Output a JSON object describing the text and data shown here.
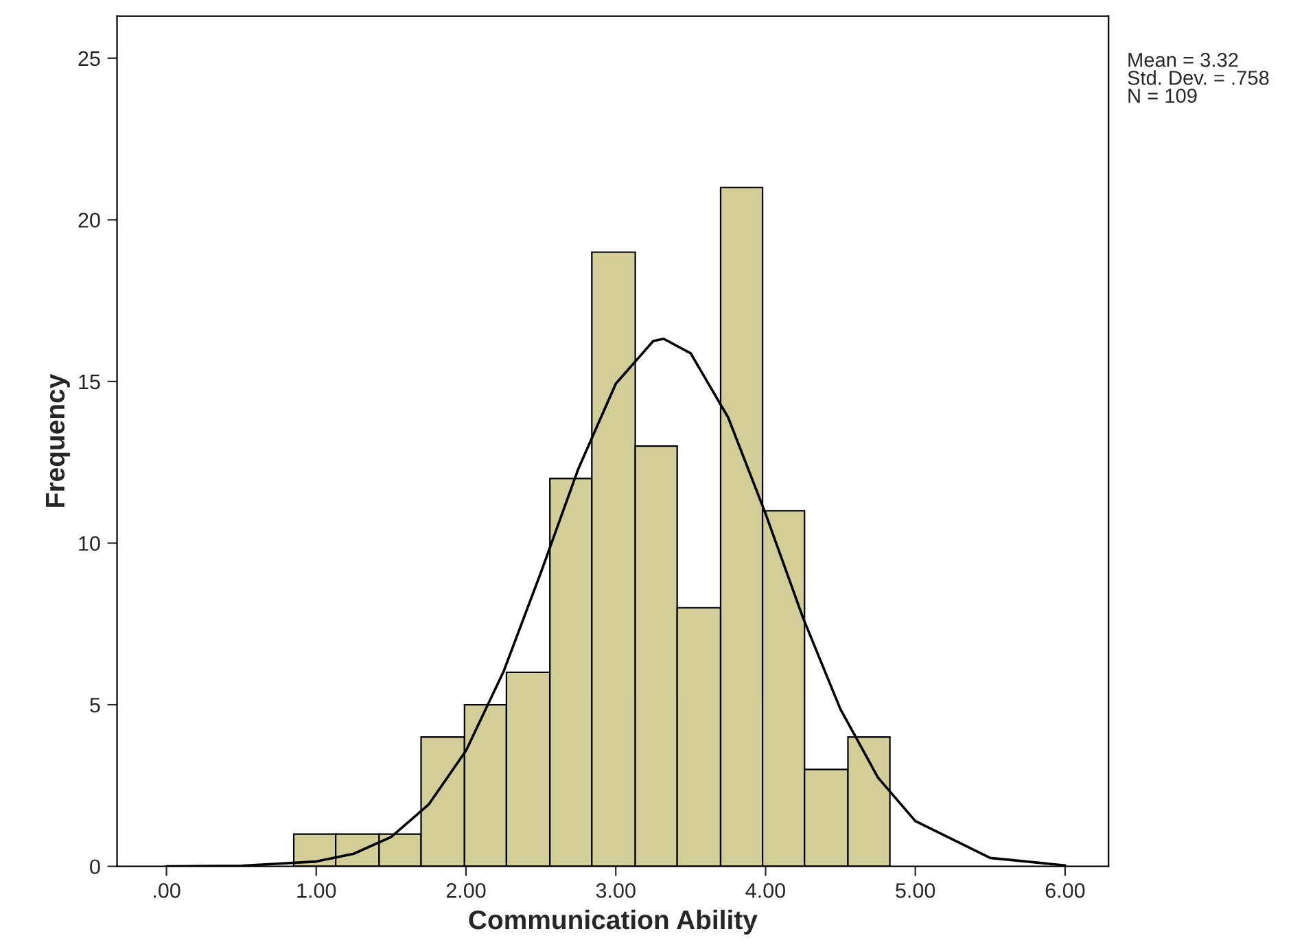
{
  "chart_data": {
    "type": "histogram",
    "xlabel": "Communication Ability",
    "ylabel": "Frequency",
    "bins": [
      0.85,
      1.13,
      1.42,
      1.7,
      1.99,
      2.27,
      2.56,
      2.84,
      3.13,
      3.41,
      3.7,
      3.98,
      4.26,
      4.55,
      4.83
    ],
    "values": [
      1,
      1,
      1,
      4,
      5,
      6,
      12,
      19,
      13,
      8,
      21,
      11,
      3,
      4
    ],
    "color": "#d3ce97",
    "series": [
      {
        "type": "line",
        "color": "#000000",
        "x": [
          0,
          0.5,
          1.0,
          1.25,
          1.5,
          1.75,
          2.0,
          2.25,
          2.5,
          2.75,
          3.0,
          3.25,
          3.32,
          3.5,
          3.75,
          4.0,
          4.25,
          4.5,
          4.75,
          5.0,
          5.5,
          6.0
        ],
        "values": [
          0.0,
          0.02,
          0.15,
          0.39,
          0.91,
          1.91,
          3.58,
          6.02,
          9.09,
          12.3,
          14.93,
          16.25,
          16.32,
          15.87,
          13.89,
          10.91,
          7.69,
          4.86,
          2.75,
          1.4,
          0.26,
          0.03
        ]
      }
    ],
    "xlim": [
      -0.33,
      6.29
    ],
    "ylim": [
      0,
      26.3
    ],
    "xticks": [
      {
        "value": 0,
        "label": ".00"
      },
      {
        "value": 1,
        "label": "1.00"
      },
      {
        "value": 2,
        "label": "2.00"
      },
      {
        "value": 3,
        "label": "3.00"
      },
      {
        "value": 4,
        "label": "4.00"
      },
      {
        "value": 5,
        "label": "5.00"
      },
      {
        "value": 6,
        "label": "6.00"
      }
    ],
    "yticks": [
      0,
      5,
      10,
      15,
      20,
      25
    ],
    "annotations": [
      "Mean = 3.32\nStd. Dev. = .758\nN = 109"
    ],
    "grid": false
  }
}
